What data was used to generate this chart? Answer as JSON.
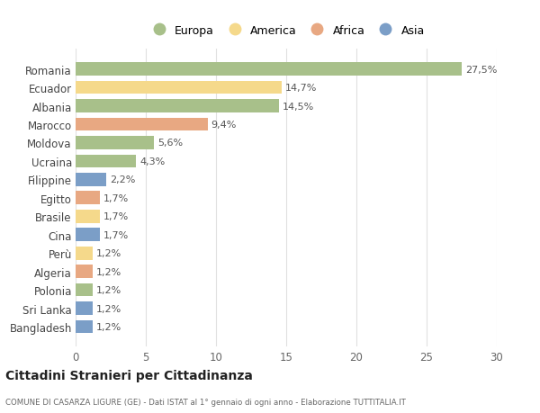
{
  "categories": [
    "Bangladesh",
    "Sri Lanka",
    "Polonia",
    "Algeria",
    "Perù",
    "Cina",
    "Brasile",
    "Egitto",
    "Filippine",
    "Ucraina",
    "Moldova",
    "Marocco",
    "Albania",
    "Ecuador",
    "Romania"
  ],
  "values": [
    1.2,
    1.2,
    1.2,
    1.2,
    1.2,
    1.7,
    1.7,
    1.7,
    2.2,
    4.3,
    5.6,
    9.4,
    14.5,
    14.7,
    27.5
  ],
  "continents": [
    "Asia",
    "Asia",
    "Europa",
    "Africa",
    "America",
    "Asia",
    "America",
    "Africa",
    "Asia",
    "Europa",
    "Europa",
    "Africa",
    "Europa",
    "America",
    "Europa"
  ],
  "labels": [
    "1,2%",
    "1,2%",
    "1,2%",
    "1,2%",
    "1,2%",
    "1,7%",
    "1,7%",
    "1,7%",
    "2,2%",
    "4,3%",
    "5,6%",
    "9,4%",
    "14,5%",
    "14,7%",
    "27,5%"
  ],
  "continent_colors": {
    "Europa": "#a8c08a",
    "America": "#f5d98b",
    "Africa": "#e8a882",
    "Asia": "#7b9ec7"
  },
  "legend_order": [
    "Europa",
    "America",
    "Africa",
    "Asia"
  ],
  "legend_colors": [
    "#a8c08a",
    "#f5d98b",
    "#e8a882",
    "#7b9ec7"
  ],
  "xlim": [
    0,
    30
  ],
  "xticks": [
    0,
    5,
    10,
    15,
    20,
    25,
    30
  ],
  "title": "Cittadini Stranieri per Cittadinanza",
  "subtitle": "COMUNE DI CASARZA LIGURE (GE) - Dati ISTAT al 1° gennaio di ogni anno - Elaborazione TUTTITALIA.IT",
  "background_color": "#ffffff",
  "grid_color": "#e0e0e0"
}
